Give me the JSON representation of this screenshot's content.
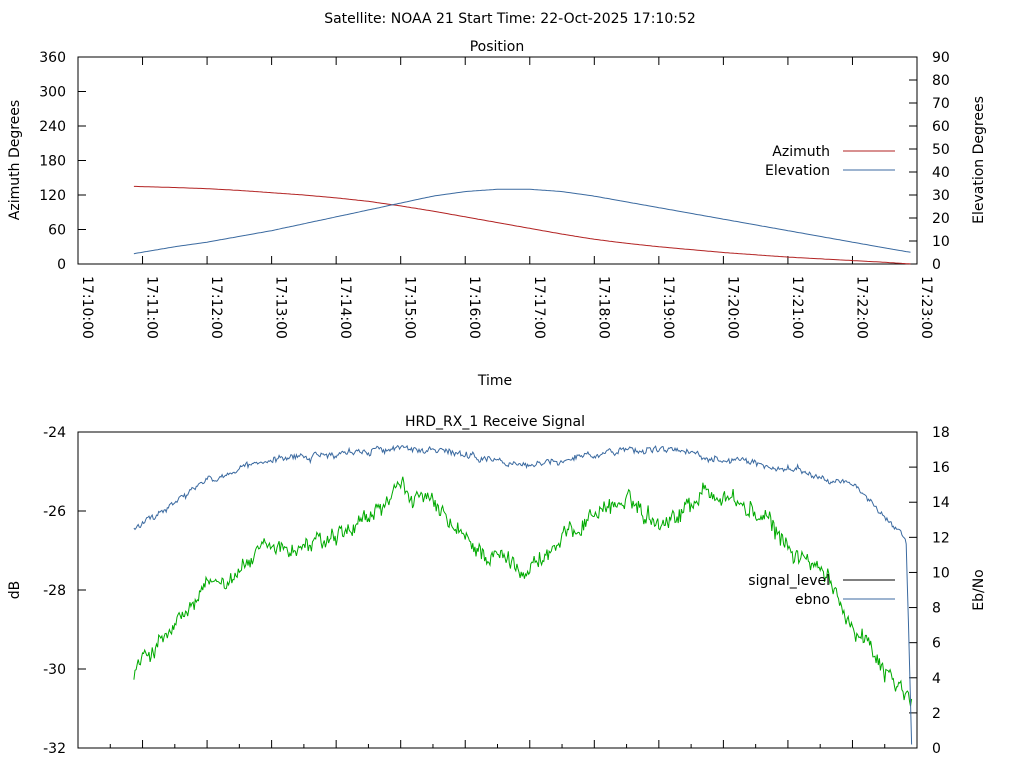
{
  "header": {
    "title": "Satellite: NOAA 21    Start Time: 22-Oct-2025 17:10:52"
  },
  "colors": {
    "azimuth": "#b22222",
    "elevation": "#3b6aa0",
    "signal_level": "#00aa00",
    "ebno": "#3b6aa0",
    "legend_signal_level": "#000000"
  },
  "chart_data": [
    {
      "type": "line",
      "title": "Position",
      "xlabel": "Time",
      "ylabel": "Azimuth Degrees",
      "y2label": "Elevation Degrees",
      "ylim": [
        0,
        360
      ],
      "y2lim": [
        0,
        90
      ],
      "yticks": [
        "0",
        "60",
        "120",
        "180",
        "240",
        "300",
        "360"
      ],
      "y2ticks": [
        "0",
        "10",
        "20",
        "30",
        "40",
        "50",
        "60",
        "70",
        "80",
        "90"
      ],
      "xticks": [
        "17:10:00",
        "17:11:00",
        "17:12:00",
        "17:13:00",
        "17:14:00",
        "17:15:00",
        "17:16:00",
        "17:17:00",
        "17:18:00",
        "17:19:00",
        "17:20:00",
        "17:21:00",
        "17:22:00",
        "17:23:00"
      ],
      "xlim": [
        "17:10:00",
        "17:23:00"
      ],
      "grid": false,
      "legend_position": "right",
      "series": [
        {
          "name": "Azimuth",
          "axis": "y1",
          "x": [
            "17:10:52",
            "17:11:30",
            "17:12:00",
            "17:12:30",
            "17:13:00",
            "17:13:30",
            "17:14:00",
            "17:14:30",
            "17:15:00",
            "17:15:30",
            "17:16:00",
            "17:16:30",
            "17:17:00",
            "17:17:30",
            "17:18:00",
            "17:18:30",
            "17:19:00",
            "17:19:30",
            "17:20:00",
            "17:20:30",
            "17:21:00",
            "17:21:30",
            "17:22:00",
            "17:22:30",
            "17:22:55"
          ],
          "values": [
            135,
            133,
            131,
            128,
            124,
            120,
            115,
            109,
            101,
            92,
            82,
            72,
            62,
            52,
            43,
            36,
            30,
            25,
            20,
            16,
            12,
            9,
            6,
            3,
            0
          ]
        },
        {
          "name": "Elevation",
          "axis": "y2",
          "x": [
            "17:10:52",
            "17:11:30",
            "17:12:00",
            "17:12:30",
            "17:13:00",
            "17:13:30",
            "17:14:00",
            "17:14:30",
            "17:15:00",
            "17:15:30",
            "17:16:00",
            "17:16:30",
            "17:17:00",
            "17:17:30",
            "17:18:00",
            "17:18:30",
            "17:19:00",
            "17:19:30",
            "17:20:00",
            "17:20:30",
            "17:21:00",
            "17:21:30",
            "17:22:00",
            "17:22:30",
            "17:22:55"
          ],
          "values": [
            4.5,
            7.5,
            9.5,
            12,
            14.5,
            17.5,
            20.5,
            23.5,
            26.5,
            29.5,
            31.5,
            32.5,
            32.5,
            31.5,
            29.5,
            27,
            24.5,
            22,
            19.5,
            17,
            14.5,
            12,
            9.5,
            7,
            5
          ]
        }
      ]
    },
    {
      "type": "line",
      "title": "HRD_RX_1 Receive Signal",
      "xlabel": "",
      "ylabel": "dB",
      "y2label": "Eb/No",
      "ylim": [
        -32,
        -24
      ],
      "y2lim": [
        0,
        18
      ],
      "yticks": [
        "-32",
        "-30",
        "-28",
        "-26",
        "-24"
      ],
      "y2ticks": [
        "0",
        "2",
        "4",
        "6",
        "8",
        "10",
        "12",
        "14",
        "16",
        "18"
      ],
      "xlim": [
        "17:10:00",
        "17:23:00"
      ],
      "grid": false,
      "legend_position": "right",
      "series": [
        {
          "name": "signal_level",
          "axis": "y1",
          "x": [
            "17:10:52",
            "17:11:10",
            "17:11:30",
            "17:11:45",
            "17:12:00",
            "17:12:30",
            "17:13:00",
            "17:13:30",
            "17:14:00",
            "17:14:20",
            "17:14:40",
            "17:15:00",
            "17:15:20",
            "17:15:40",
            "17:16:00",
            "17:16:30",
            "17:17:00",
            "17:17:20",
            "17:17:40",
            "17:18:00",
            "17:18:20",
            "17:18:40",
            "17:19:00",
            "17:19:20",
            "17:19:40",
            "17:20:00",
            "17:20:20",
            "17:20:40",
            "17:21:00",
            "17:21:20",
            "17:21:40",
            "17:22:00",
            "17:22:20",
            "17:22:40",
            "17:22:55"
          ],
          "values": [
            -30.0,
            -29.5,
            -29.0,
            -28.5,
            -28.0,
            -27.4,
            -27.0,
            -26.9,
            -26.8,
            -26.5,
            -26.0,
            -25.5,
            -25.7,
            -26.2,
            -26.8,
            -27.2,
            -27.4,
            -27.0,
            -26.5,
            -26.0,
            -25.8,
            -25.9,
            -26.2,
            -26.0,
            -25.5,
            -25.6,
            -25.9,
            -26.3,
            -26.9,
            -27.3,
            -27.9,
            -28.8,
            -29.5,
            -30.3,
            -30.9
          ]
        },
        {
          "name": "ebno",
          "axis": "y2",
          "x": [
            "17:10:52",
            "17:11:10",
            "17:11:30",
            "17:11:45",
            "17:12:00",
            "17:12:30",
            "17:13:00",
            "17:13:30",
            "17:14:00",
            "17:14:30",
            "17:15:00",
            "17:15:30",
            "17:16:00",
            "17:16:30",
            "17:17:00",
            "17:17:30",
            "17:18:00",
            "17:18:30",
            "17:19:00",
            "17:19:30",
            "17:20:00",
            "17:20:30",
            "17:21:00",
            "17:21:30",
            "17:22:00",
            "17:22:20",
            "17:22:40",
            "17:22:50",
            "17:22:55"
          ],
          "values": [
            12.5,
            13.1,
            13.9,
            14.6,
            15.2,
            15.8,
            16.3,
            16.6,
            16.8,
            17.0,
            17.1,
            16.9,
            16.6,
            16.3,
            16.1,
            16.4,
            16.8,
            17.0,
            17.0,
            16.8,
            16.5,
            16.2,
            15.9,
            15.5,
            15.0,
            13.6,
            12.8,
            11.8,
            0.2
          ]
        }
      ]
    }
  ]
}
